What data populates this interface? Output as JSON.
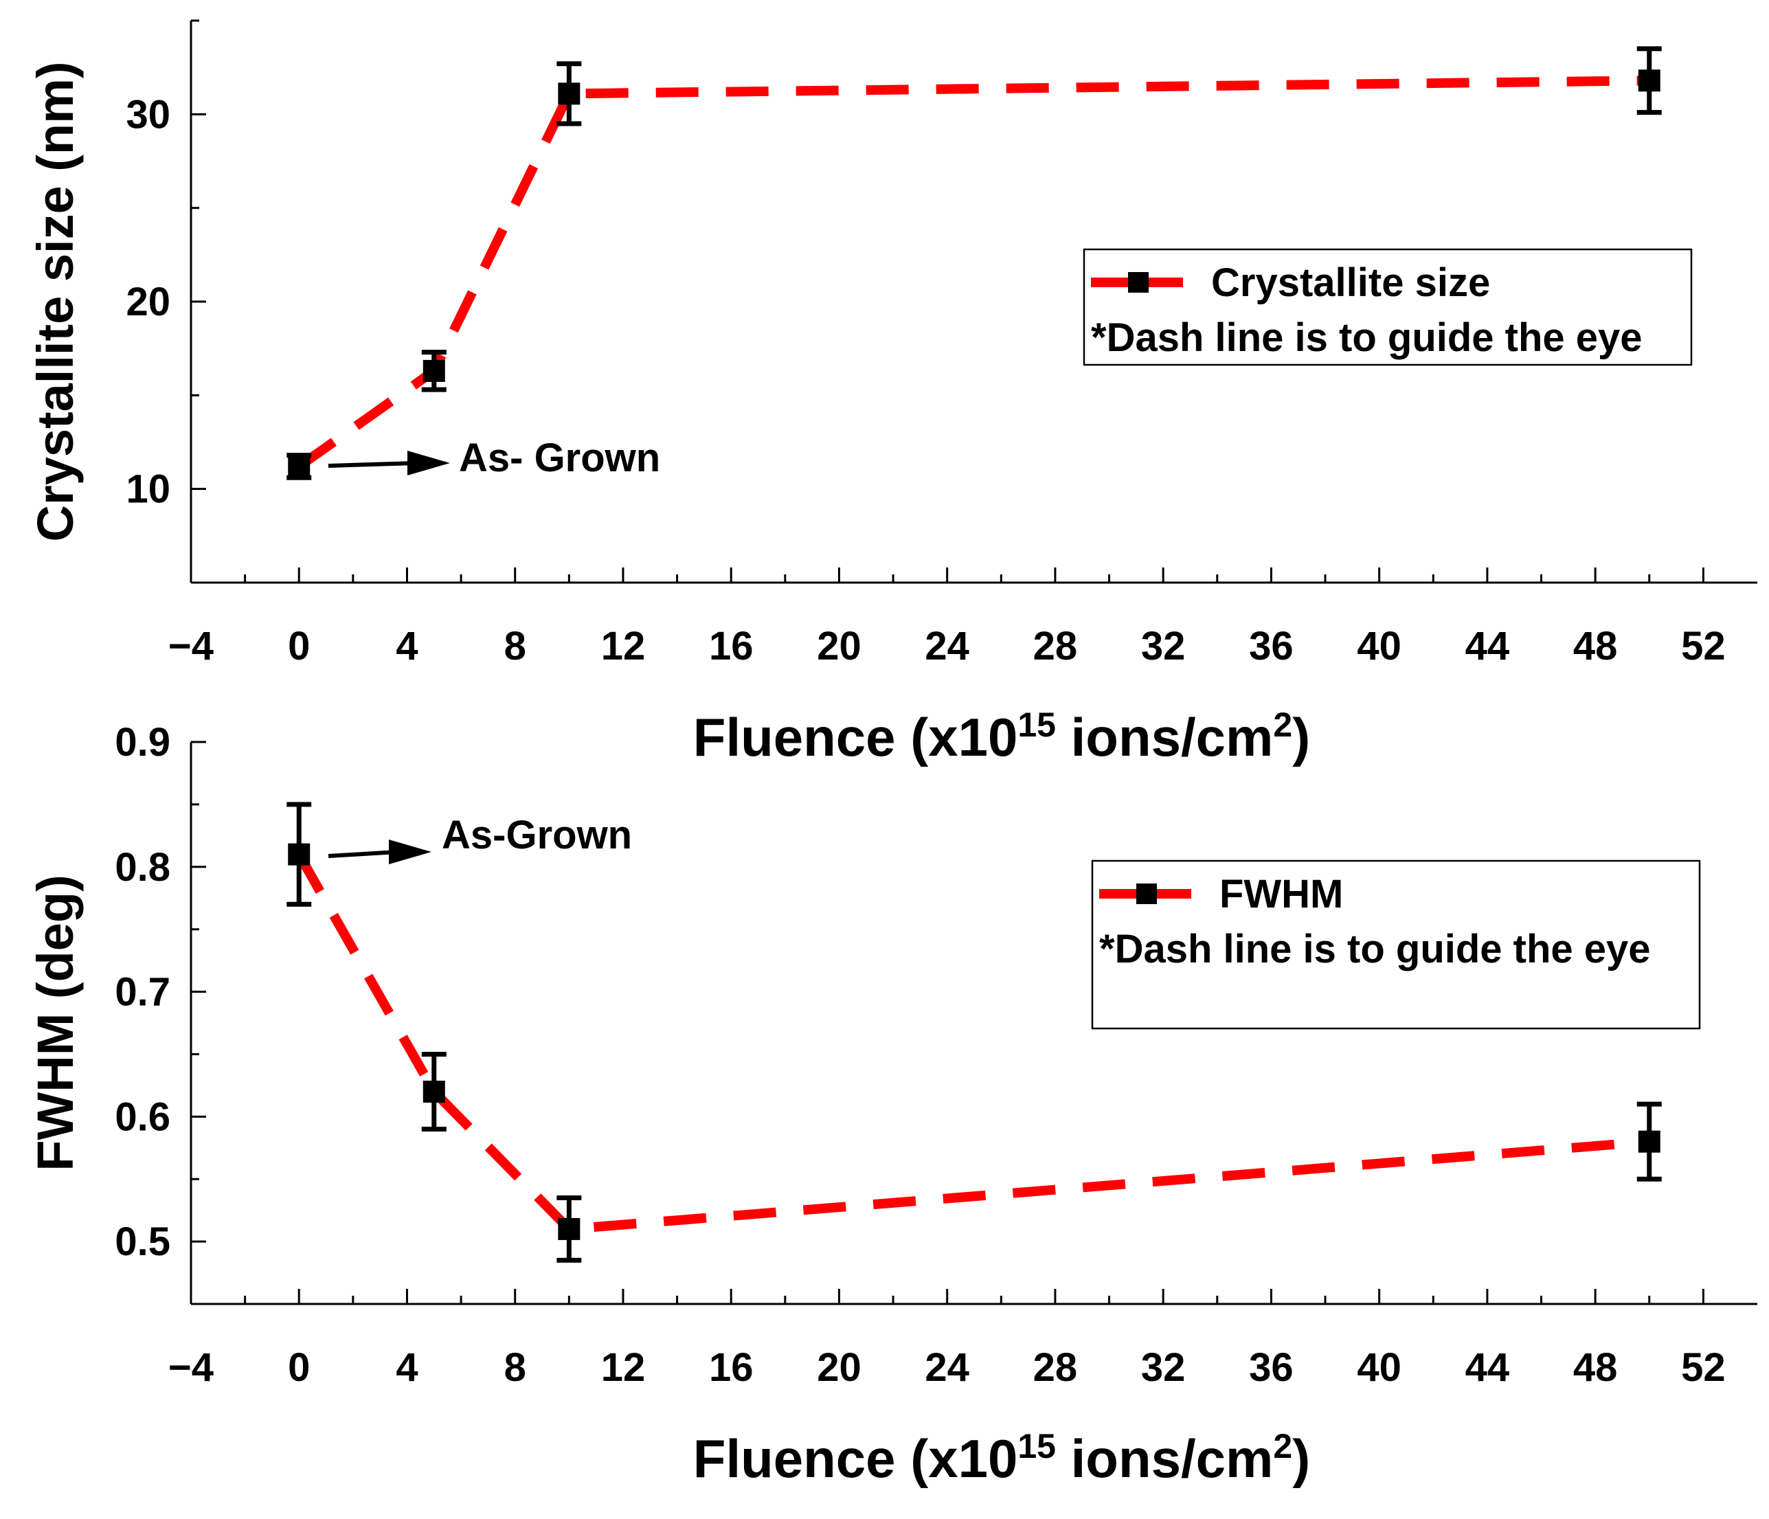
{
  "colors": {
    "line": "#ff0000",
    "marker": "#000000",
    "axis": "#000000",
    "background": "#ffffff"
  },
  "chart_data": [
    {
      "type": "line",
      "title": "",
      "xlabel_main": "Fluence (x10",
      "xlabel_exp1": "15",
      "xlabel_mid": " ions/cm",
      "xlabel_exp2": "2",
      "xlabel_end": ")",
      "ylabel": "Crystallite size (nm)",
      "xlim": [
        -4,
        54
      ],
      "ylim": [
        5,
        35
      ],
      "xticks": [
        -4,
        0,
        4,
        8,
        12,
        16,
        20,
        24,
        28,
        32,
        36,
        40,
        44,
        48,
        52
      ],
      "xtick_labels": [
        "−4",
        "0",
        "4",
        "8",
        "12",
        "16",
        "20",
        "24",
        "28",
        "32",
        "36",
        "40",
        "44",
        "48",
        "52"
      ],
      "yticks": [
        10,
        20,
        30
      ],
      "ytick_labels": [
        "10",
        "20",
        "30"
      ],
      "yminor": [
        5,
        15,
        25,
        35
      ],
      "line_style": "dashed",
      "series": [
        {
          "name": "Crystallite size",
          "x": [
            0,
            5,
            10,
            50
          ],
          "y": [
            11.2,
            16.3,
            31.1,
            31.8
          ],
          "err": [
            0.6,
            1.0,
            1.6,
            1.7
          ]
        }
      ],
      "legend": {
        "position": "right",
        "entry": "Crystallite size",
        "note": "*Dash line is to guide the eye"
      },
      "annotation": {
        "text": "As- Grown"
      }
    },
    {
      "type": "line",
      "title": "",
      "xlabel_main": "Fluence (x10",
      "xlabel_exp1": "15",
      "xlabel_mid": " ions/cm",
      "xlabel_exp2": "2",
      "xlabel_end": ")",
      "ylabel": "FWHM (deg)",
      "xlim": [
        -4,
        54
      ],
      "ylim": [
        0.45,
        0.9
      ],
      "xticks": [
        -4,
        0,
        4,
        8,
        12,
        16,
        20,
        24,
        28,
        32,
        36,
        40,
        44,
        48,
        52
      ],
      "xtick_labels": [
        "−4",
        "0",
        "4",
        "8",
        "12",
        "16",
        "20",
        "24",
        "28",
        "32",
        "36",
        "40",
        "44",
        "48",
        "52"
      ],
      "yticks": [
        0.5,
        0.6,
        0.7,
        0.8,
        0.9
      ],
      "ytick_labels": [
        "0.5",
        "0.6",
        "0.7",
        "0.8",
        "0.9"
      ],
      "yminor": [
        0.45,
        0.55,
        0.65,
        0.75,
        0.85
      ],
      "line_style": "dashed",
      "series": [
        {
          "name": "FWHM",
          "x": [
            0,
            5,
            10,
            50
          ],
          "y": [
            0.81,
            0.62,
            0.51,
            0.58
          ],
          "err": [
            0.04,
            0.03,
            0.025,
            0.03
          ]
        }
      ],
      "legend": {
        "position": "right",
        "entry": "FWHM",
        "note": "*Dash line is to guide the eye"
      },
      "annotation": {
        "text": "As-Grown"
      }
    }
  ]
}
